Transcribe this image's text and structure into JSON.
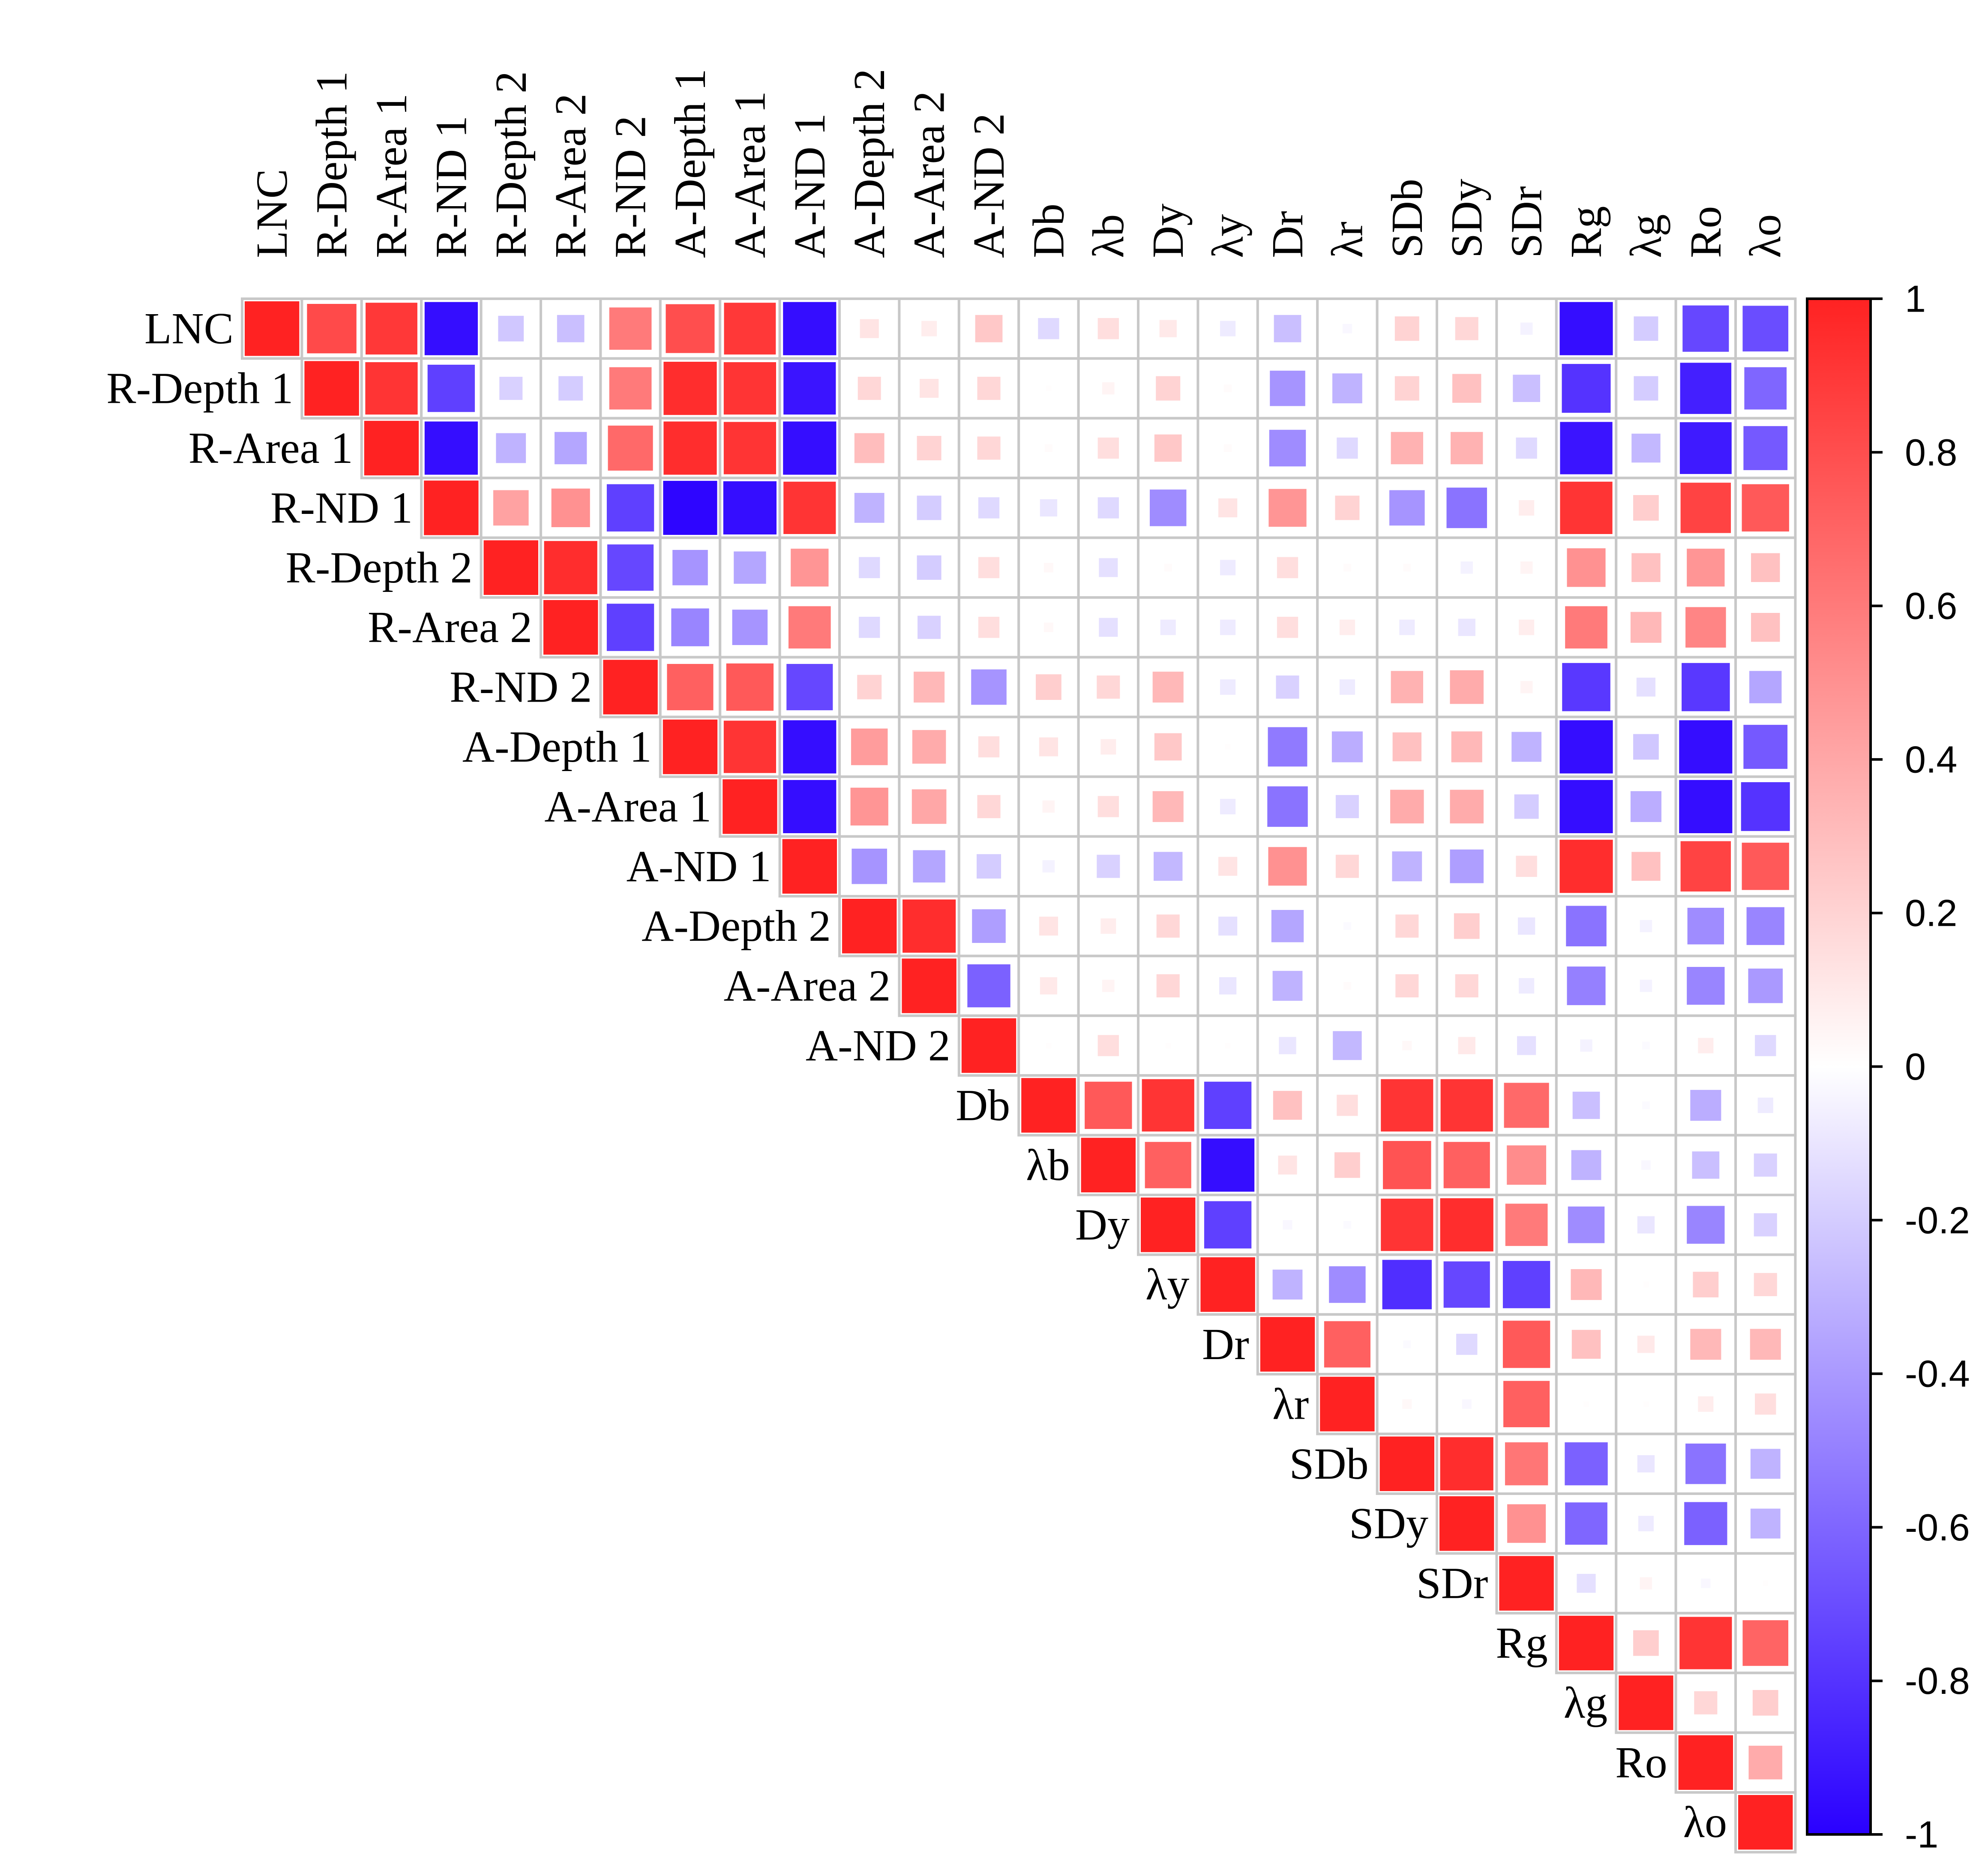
{
  "chart_data": {
    "type": "heatmap",
    "subtype": "correlation-upper-triangle",
    "title": "",
    "variables": [
      "LNC",
      "R-Depth 1",
      "R-Area 1",
      "R-ND 1",
      "R-Depth 2",
      "R-Area 2",
      "R-ND 2",
      "A-Depth 1",
      "A-Area 1",
      "A-ND 1",
      "A-Depth 2",
      "A-Area 2",
      "A-ND 2",
      "Db",
      "λb",
      "Dy",
      "λy",
      "Dr",
      "λr",
      "SDb",
      "SDy",
      "SDr",
      "Rg",
      "λg",
      "Ro",
      "λo"
    ],
    "matrix": [
      [
        1,
        0.82,
        0.9,
        -0.95,
        -0.22,
        -0.25,
        0.6,
        0.8,
        0.9,
        -0.95,
        0.12,
        0.08,
        0.25,
        -0.15,
        0.15,
        0.1,
        -0.08,
        -0.25,
        -0.03,
        0.2,
        0.18,
        -0.05,
        -0.95,
        -0.2,
        -0.72,
        -0.7
      ],
      [
        0,
        1,
        0.92,
        -0.75,
        -0.18,
        -0.2,
        0.6,
        0.95,
        0.92,
        -0.92,
        0.18,
        0.12,
        0.18,
        0.01,
        0.05,
        0.2,
        0.02,
        -0.42,
        -0.3,
        0.2,
        0.28,
        -0.25,
        -0.8,
        -0.2,
        -0.88,
        -0.6
      ],
      [
        0,
        0,
        1,
        -0.95,
        -0.3,
        -0.35,
        0.68,
        0.95,
        0.92,
        -0.95,
        0.3,
        0.2,
        0.18,
        0.02,
        0.15,
        0.25,
        0.02,
        -0.45,
        -0.15,
        0.35,
        0.35,
        -0.15,
        -0.92,
        -0.28,
        -0.9,
        -0.65
      ],
      [
        0,
        0,
        0,
        1,
        0.42,
        0.5,
        -0.75,
        -0.98,
        -0.95,
        0.92,
        -0.3,
        -0.2,
        -0.15,
        -0.1,
        -0.15,
        -0.45,
        0.12,
        0.48,
        0.2,
        -0.42,
        -0.55,
        0.08,
        0.92,
        0.22,
        0.85,
        0.75
      ],
      [
        0,
        0,
        0,
        0,
        1,
        0.95,
        -0.72,
        -0.42,
        -0.35,
        0.48,
        -0.15,
        -0.2,
        0.15,
        0.03,
        -0.12,
        0.02,
        -0.08,
        0.15,
        0.02,
        0.02,
        -0.05,
        0.05,
        0.5,
        0.28,
        0.48,
        0.28
      ],
      [
        0,
        0,
        0,
        0,
        0,
        1,
        -0.75,
        -0.48,
        -0.42,
        0.6,
        -0.15,
        -0.18,
        0.15,
        0.03,
        -0.12,
        -0.08,
        -0.08,
        0.15,
        0.08,
        -0.08,
        -0.1,
        0.08,
        0.6,
        0.32,
        0.55,
        0.28
      ],
      [
        0,
        0,
        0,
        0,
        0,
        0,
        1,
        0.72,
        0.75,
        -0.72,
        0.2,
        0.32,
        -0.42,
        0.22,
        0.18,
        0.32,
        -0.08,
        -0.18,
        -0.08,
        0.35,
        0.38,
        0.05,
        -0.78,
        -0.12,
        -0.78,
        -0.35
      ],
      [
        0,
        0,
        0,
        0,
        0,
        0,
        0,
        1,
        0.92,
        -0.95,
        0.45,
        0.38,
        0.15,
        0.12,
        0.08,
        0.25,
        0.01,
        -0.52,
        -0.32,
        0.28,
        0.32,
        -0.3,
        -0.95,
        -0.22,
        -0.95,
        -0.65
      ],
      [
        0,
        0,
        0,
        0,
        0,
        0,
        0,
        0,
        1,
        -0.95,
        0.48,
        0.4,
        0.18,
        0.05,
        0.15,
        0.32,
        -0.08,
        -0.55,
        -0.18,
        0.38,
        0.38,
        -0.2,
        -0.95,
        -0.32,
        -0.95,
        -0.8
      ],
      [
        0,
        0,
        0,
        0,
        0,
        0,
        0,
        0,
        0,
        1,
        -0.42,
        -0.35,
        -0.2,
        -0.05,
        -0.18,
        -0.28,
        0.12,
        0.5,
        0.18,
        -0.3,
        -0.38,
        0.15,
        0.95,
        0.28,
        0.85,
        0.75
      ],
      [
        0,
        0,
        0,
        0,
        0,
        0,
        0,
        0,
        0,
        0,
        1,
        0.95,
        -0.38,
        0.12,
        0.08,
        0.18,
        -0.12,
        -0.35,
        -0.02,
        0.18,
        0.22,
        -0.1,
        -0.55,
        -0.05,
        -0.45,
        -0.48
      ],
      [
        0,
        0,
        0,
        0,
        0,
        0,
        0,
        0,
        0,
        0,
        0,
        1,
        -0.62,
        0.1,
        0.05,
        0.18,
        -0.1,
        -0.3,
        0.02,
        0.18,
        0.18,
        -0.08,
        -0.5,
        -0.05,
        -0.48,
        -0.4
      ],
      [
        0,
        0,
        0,
        0,
        0,
        0,
        0,
        0,
        0,
        0,
        0,
        0,
        1,
        0.01,
        0.15,
        0.01,
        0.01,
        -0.1,
        -0.28,
        0.03,
        0.1,
        -0.12,
        -0.05,
        -0.02,
        0.08,
        -0.15
      ],
      [
        0,
        0,
        0,
        0,
        0,
        0,
        0,
        0,
        0,
        0,
        0,
        0,
        0,
        1,
        0.75,
        0.92,
        -0.75,
        0.28,
        0.15,
        0.92,
        0.92,
        0.68,
        -0.25,
        -0.02,
        -0.32,
        -0.08
      ],
      [
        0,
        0,
        0,
        0,
        0,
        0,
        0,
        0,
        0,
        0,
        0,
        0,
        0,
        0,
        1,
        0.72,
        -0.95,
        0.12,
        0.22,
        0.78,
        0.72,
        0.52,
        -0.3,
        -0.03,
        -0.25,
        -0.18
      ],
      [
        0,
        0,
        0,
        0,
        0,
        0,
        0,
        0,
        0,
        0,
        0,
        0,
        0,
        0,
        0,
        1,
        -0.75,
        -0.03,
        -0.02,
        0.92,
        0.95,
        0.6,
        -0.45,
        -0.1,
        -0.48,
        -0.18
      ],
      [
        0,
        0,
        0,
        0,
        0,
        0,
        0,
        0,
        0,
        0,
        0,
        0,
        0,
        0,
        0,
        0,
        1,
        -0.3,
        -0.45,
        -0.82,
        -0.72,
        -0.75,
        0.32,
        0.01,
        0.22,
        0.18
      ],
      [
        0,
        0,
        0,
        0,
        0,
        0,
        0,
        0,
        0,
        0,
        0,
        0,
        0,
        0,
        0,
        0,
        0,
        1,
        0.72,
        -0.02,
        -0.15,
        0.75,
        0.28,
        0.1,
        0.32,
        0.32
      ],
      [
        0,
        0,
        0,
        0,
        0,
        0,
        0,
        0,
        0,
        0,
        0,
        0,
        0,
        0,
        0,
        0,
        0,
        0,
        1,
        0.03,
        -0.03,
        0.72,
        0.01,
        0.01,
        0.08,
        0.15
      ],
      [
        0,
        0,
        0,
        0,
        0,
        0,
        0,
        0,
        0,
        0,
        0,
        0,
        0,
        0,
        0,
        0,
        0,
        0,
        0,
        1,
        0.95,
        0.62,
        -0.62,
        -0.1,
        -0.55,
        -0.3
      ],
      [
        0,
        0,
        0,
        0,
        0,
        0,
        0,
        0,
        0,
        0,
        0,
        0,
        0,
        0,
        0,
        0,
        0,
        0,
        0,
        0,
        1,
        0.5,
        -0.6,
        -0.08,
        -0.62,
        -0.3
      ],
      [
        0,
        0,
        0,
        0,
        0,
        0,
        0,
        0,
        0,
        0,
        0,
        0,
        0,
        0,
        0,
        0,
        0,
        0,
        0,
        0,
        0,
        1,
        -0.12,
        0.05,
        -0.03,
        0.01
      ],
      [
        0,
        0,
        0,
        0,
        0,
        0,
        0,
        0,
        0,
        0,
        0,
        0,
        0,
        0,
        0,
        0,
        0,
        0,
        0,
        0,
        0,
        0,
        1,
        0.22,
        0.92,
        0.7
      ],
      [
        0,
        0,
        0,
        0,
        0,
        0,
        0,
        0,
        0,
        0,
        0,
        0,
        0,
        0,
        0,
        0,
        0,
        0,
        0,
        0,
        0,
        0,
        0,
        1,
        0.18,
        0.22
      ],
      [
        0,
        0,
        0,
        0,
        0,
        0,
        0,
        0,
        0,
        0,
        0,
        0,
        0,
        0,
        0,
        0,
        0,
        0,
        0,
        0,
        0,
        0,
        0,
        0,
        1,
        0.38
      ],
      [
        0,
        0,
        0,
        0,
        0,
        0,
        0,
        0,
        0,
        0,
        0,
        0,
        0,
        0,
        0,
        0,
        0,
        0,
        0,
        0,
        0,
        0,
        0,
        0,
        0,
        1
      ]
    ],
    "color_scale": {
      "min": -1,
      "max": 1,
      "ticks": [
        "1",
        "0.8",
        "0.6",
        "0.4",
        "0.2",
        "0",
        "-0.2",
        "-0.4",
        "-0.6",
        "-0.8",
        "-1"
      ],
      "tick_values": [
        1,
        0.8,
        0.6,
        0.4,
        0.2,
        0,
        -0.2,
        -0.4,
        -0.6,
        -0.8,
        -1
      ],
      "positive_color": "#ff2222",
      "zero_color": "#ffffff",
      "negative_color": "#2a00ff"
    },
    "grid_color": "#c8c8c8",
    "legend": "right"
  }
}
